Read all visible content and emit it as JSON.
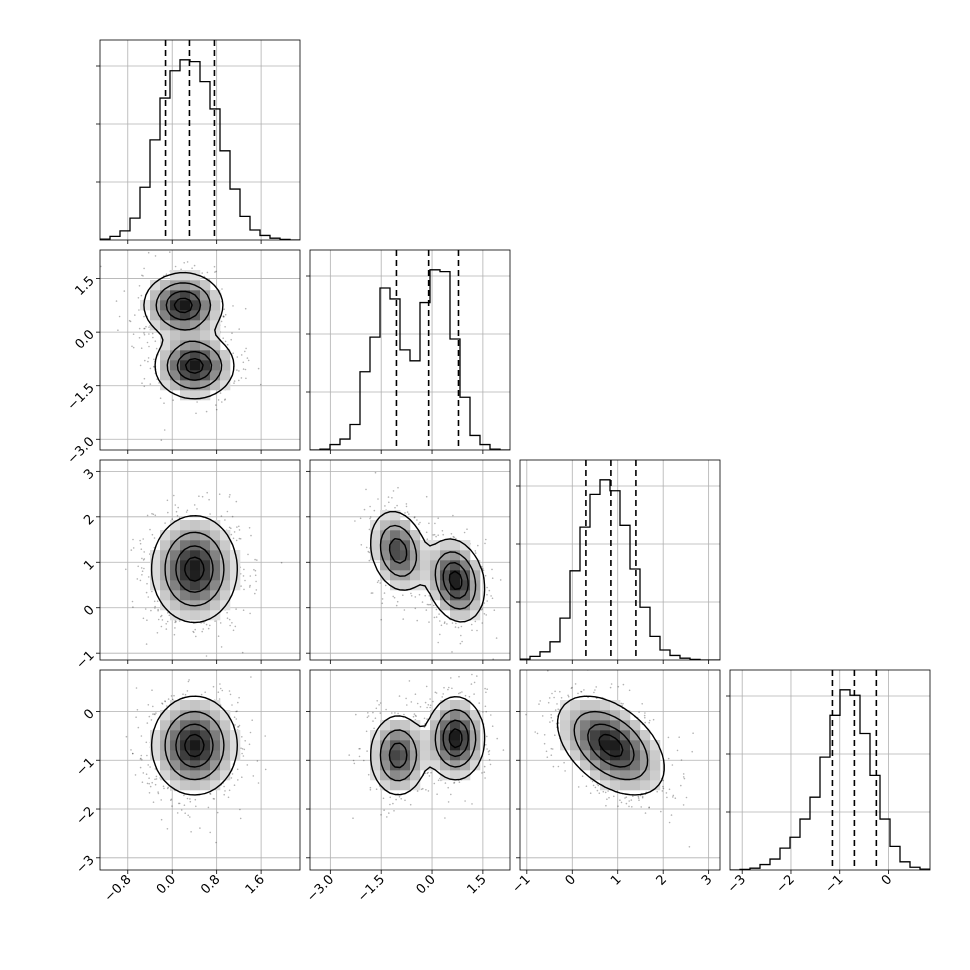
{
  "chart_data": {
    "type": "corner",
    "title": "",
    "grid": true,
    "panels": [
      {
        "kind": "histogram",
        "var": 0,
        "xlim": [
          -1.3,
          2.3
        ],
        "quantiles": [
          -0.12,
          0.31,
          0.76
        ],
        "bins": [
          -1.3,
          -1.12,
          -0.94,
          -0.76,
          -0.58,
          -0.4,
          -0.22,
          -0.04,
          0.14,
          0.32,
          0.5,
          0.68,
          0.86,
          1.04,
          1.22,
          1.4,
          1.58,
          1.76,
          1.94,
          2.12,
          2.3
        ],
        "counts": [
          0.005,
          0.02,
          0.05,
          0.12,
          0.29,
          0.55,
          0.78,
          0.93,
          0.99,
          0.98,
          0.87,
          0.72,
          0.49,
          0.28,
          0.13,
          0.055,
          0.025,
          0.01,
          0.003,
          0
        ]
      },
      {
        "kind": "histogram",
        "var": 1,
        "xlim": [
          -3.6,
          2.3
        ],
        "quantiles": [
          -1.05,
          -0.1,
          0.78
        ],
        "bins": [
          -3.6,
          -3.305,
          -3.01,
          -2.715,
          -2.42,
          -2.125,
          -1.83,
          -1.535,
          -1.24,
          -0.945,
          -0.65,
          -0.355,
          -0.06,
          0.235,
          0.53,
          0.825,
          1.12,
          1.415,
          1.71,
          2.005,
          2.3
        ],
        "counts": [
          0,
          0.005,
          0.03,
          0.06,
          0.14,
          0.43,
          0.62,
          0.89,
          0.83,
          0.55,
          0.49,
          0.81,
          0.99,
          0.98,
          0.61,
          0.29,
          0.08,
          0.03,
          0.005,
          0
        ]
      },
      {
        "kind": "histogram",
        "var": 2,
        "xlim": [
          -1.15,
          3.25
        ],
        "quantiles": [
          0.3,
          0.85,
          1.4
        ],
        "bins": [
          -1.15,
          -0.93,
          -0.71,
          -0.49,
          -0.27,
          -0.05,
          0.17,
          0.39,
          0.61,
          0.83,
          1.05,
          1.27,
          1.49,
          1.71,
          1.93,
          2.15,
          2.37,
          2.59,
          2.81,
          3.03,
          3.25
        ],
        "counts": [
          0.005,
          0.02,
          0.045,
          0.1,
          0.23,
          0.49,
          0.73,
          0.91,
          0.99,
          0.93,
          0.74,
          0.5,
          0.29,
          0.13,
          0.055,
          0.025,
          0.01,
          0.003,
          0,
          0
        ]
      },
      {
        "kind": "histogram",
        "var": 3,
        "xlim": [
          -3.25,
          0.85
        ],
        "quantiles": [
          -1.15,
          -0.7,
          -0.25
        ],
        "bins": [
          -3.25,
          -3.045,
          -2.84,
          -2.635,
          -2.43,
          -2.225,
          -2.02,
          -1.815,
          -1.61,
          -1.405,
          -1.2,
          -0.995,
          -0.79,
          -0.585,
          -0.38,
          -0.175,
          0.03,
          0.235,
          0.44,
          0.645,
          0.85
        ],
        "counts": [
          0,
          0.003,
          0.01,
          0.03,
          0.06,
          0.12,
          0.18,
          0.28,
          0.4,
          0.62,
          0.85,
          0.99,
          0.96,
          0.75,
          0.52,
          0.28,
          0.13,
          0.045,
          0.015,
          0.005
        ]
      },
      {
        "kind": "scatter2d",
        "xvar": 0,
        "yvar": 1,
        "xlim": [
          -1.3,
          2.3
        ],
        "ylim": [
          -3.3,
          2.3
        ],
        "components": [
          {
            "weight": 0.5,
            "mean": [
              0.2,
              0.75
            ],
            "sd": [
              0.35,
              0.45
            ],
            "rho": 0
          },
          {
            "weight": 0.5,
            "mean": [
              0.4,
              -0.95
            ],
            "sd": [
              0.35,
              0.45
            ],
            "rho": 0
          }
        ]
      },
      {
        "kind": "scatter2d",
        "xvar": 0,
        "yvar": 2,
        "xlim": [
          -1.3,
          2.3
        ],
        "ylim": [
          -1.15,
          3.25
        ],
        "components": [
          {
            "weight": 1,
            "mean": [
              0.4,
              0.85
            ],
            "sd": [
              0.38,
              0.58
            ],
            "rho": 0
          }
        ]
      },
      {
        "kind": "scatter2d",
        "xvar": 1,
        "yvar": 2,
        "xlim": [
          -3.6,
          2.3
        ],
        "ylim": [
          -1.15,
          3.25
        ],
        "components": [
          {
            "weight": 0.45,
            "mean": [
              -1.0,
              1.25
            ],
            "sd": [
              0.42,
              0.45
            ],
            "rho": -0.2
          },
          {
            "weight": 0.55,
            "mean": [
              0.7,
              0.6
            ],
            "sd": [
              0.42,
              0.45
            ],
            "rho": -0.2
          }
        ]
      },
      {
        "kind": "scatter2d",
        "xvar": 0,
        "yvar": 3,
        "xlim": [
          -1.3,
          2.3
        ],
        "ylim": [
          -3.25,
          0.85
        ],
        "components": [
          {
            "weight": 1,
            "mean": [
              0.4,
              -0.7
            ],
            "sd": [
              0.38,
              0.5
            ],
            "rho": 0
          }
        ]
      },
      {
        "kind": "scatter2d",
        "xvar": 1,
        "yvar": 3,
        "xlim": [
          -3.6,
          2.3
        ],
        "ylim": [
          -3.25,
          0.85
        ],
        "components": [
          {
            "weight": 0.45,
            "mean": [
              -1.0,
              -0.9
            ],
            "sd": [
              0.42,
              0.42
            ],
            "rho": 0
          },
          {
            "weight": 0.55,
            "mean": [
              0.7,
              -0.55
            ],
            "sd": [
              0.42,
              0.42
            ],
            "rho": 0
          }
        ]
      },
      {
        "kind": "scatter2d",
        "xvar": 2,
        "yvar": 3,
        "xlim": [
          -1.15,
          3.25
        ],
        "ylim": [
          -3.25,
          0.85
        ],
        "components": [
          {
            "weight": 1,
            "mean": [
              0.85,
              -0.7
            ],
            "sd": [
              0.58,
              0.5
            ],
            "rho": -0.45
          }
        ]
      }
    ],
    "axes": [
      {
        "var": 0,
        "ticks": [
          -0.8,
          0.0,
          0.8,
          1.6
        ],
        "labels": [
          "−0.8",
          "0.0",
          "0.8",
          "1.6"
        ]
      },
      {
        "var": 1,
        "ticks": [
          -3.0,
          -1.5,
          0.0,
          1.5
        ],
        "labels": [
          "−3.0",
          "−1.5",
          "0.0",
          "1.5"
        ]
      },
      {
        "var": 2,
        "ticks": [
          -1,
          0,
          1,
          2,
          3
        ],
        "labels": [
          "−1",
          "0",
          "1",
          "2",
          "3"
        ]
      },
      {
        "var": 3,
        "ticks": [
          -3,
          -2,
          -1,
          0
        ],
        "labels": [
          "−3",
          "−2",
          "−1",
          "0"
        ]
      }
    ]
  }
}
